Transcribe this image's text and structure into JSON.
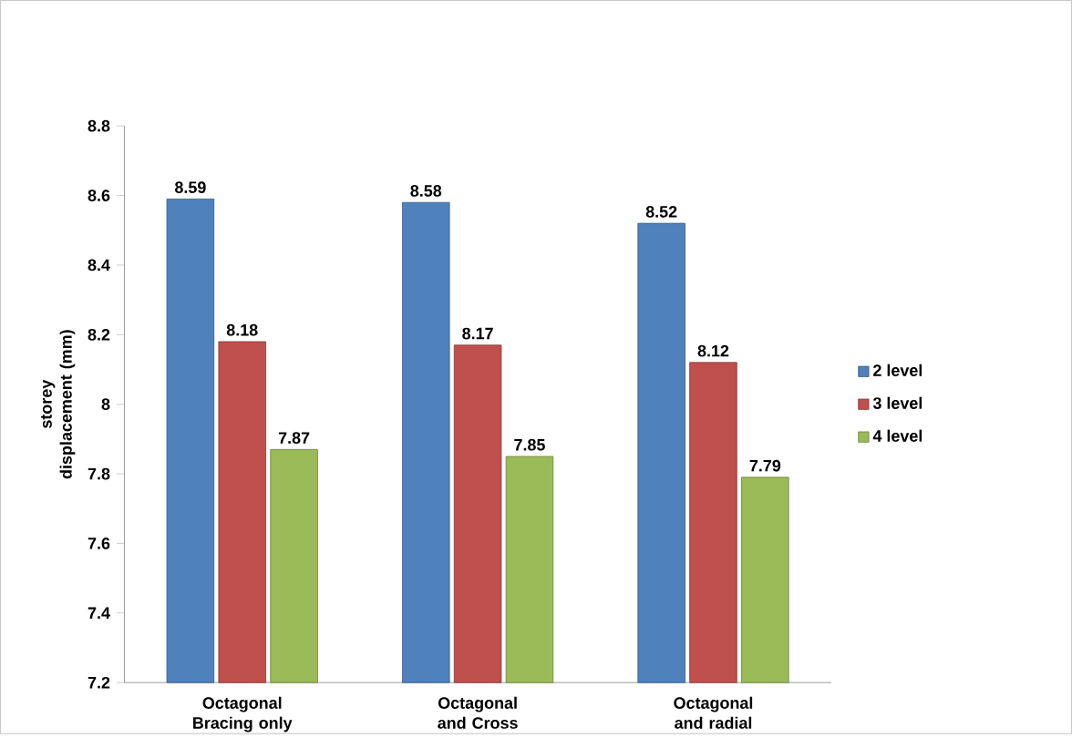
{
  "chart_data": {
    "type": "bar",
    "ylabel": "storey displacement (mm)",
    "categories": [
      "Octagonal Bracing only",
      "Octagonal and Cross",
      "Octagonal and radial"
    ],
    "series": [
      {
        "name": "2 level",
        "color": "#4f81bd",
        "values": [
          8.59,
          8.58,
          8.52
        ]
      },
      {
        "name": "3 level",
        "color": "#c0504d",
        "values": [
          8.18,
          8.17,
          8.12
        ]
      },
      {
        "name": "4 level",
        "color": "#9bbb59",
        "values": [
          7.87,
          7.85,
          7.79
        ]
      }
    ],
    "ylim": [
      7.2,
      8.8
    ],
    "yticks": [
      7.2,
      7.4,
      7.6,
      7.8,
      8,
      8.2,
      8.4,
      8.6,
      8.8
    ],
    "data_labels": true,
    "legend": "right",
    "grid": false
  }
}
